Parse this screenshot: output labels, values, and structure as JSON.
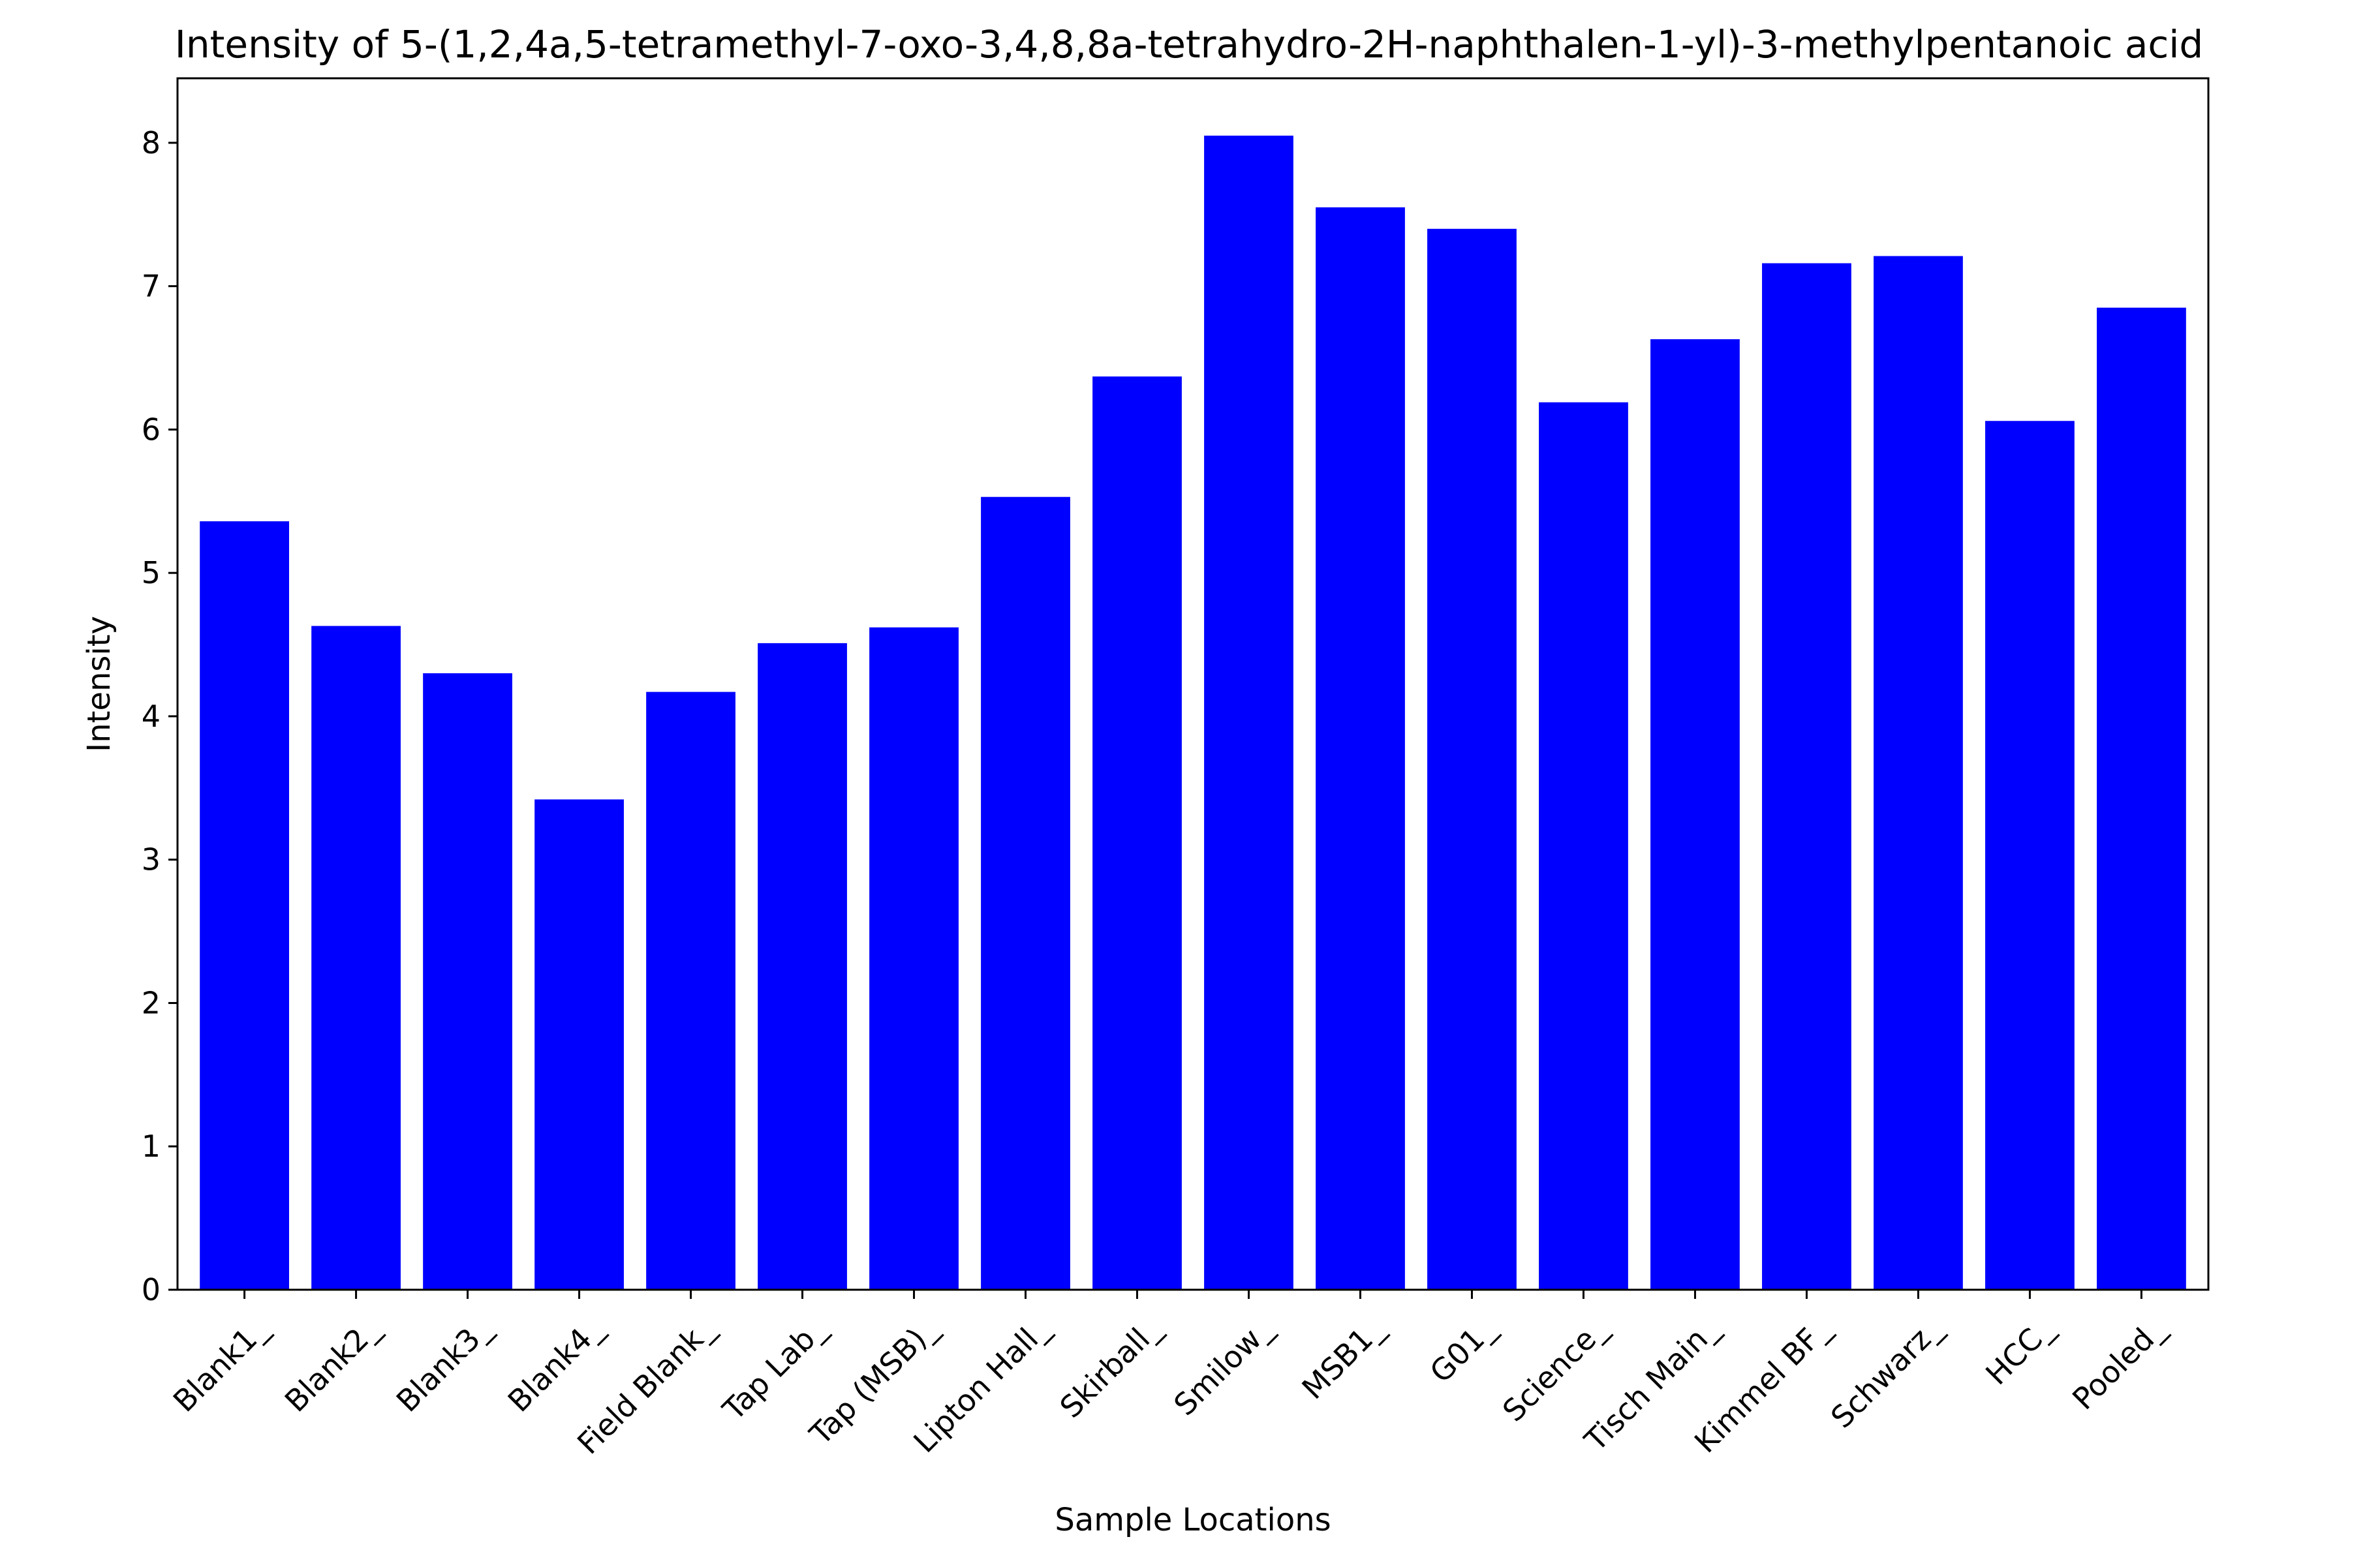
{
  "chart_data": {
    "type": "bar",
    "title": "Intensity of 5-(1,2,4a,5-tetramethyl-7-oxo-3,4,8,8a-tetrahydro-2H-naphthalen-1-yl)-3-methylpentanoic acid",
    "xlabel": "Sample Locations",
    "ylabel": "Intensity",
    "categories": [
      "Blank1_",
      "Blank2_",
      "Blank3_",
      "Blank4_",
      "Field Blank_",
      "Tap Lab_",
      "Tap (MSB)_",
      "Lipton Hall_",
      "Skirball_",
      "Smilow_",
      "MSB1_",
      "G01_",
      "Science_",
      "Tisch Main_",
      "Kimmel BF_",
      "Schwarz_",
      "HCC_",
      "Pooled_"
    ],
    "values": [
      5.36,
      4.63,
      4.3,
      3.42,
      4.17,
      4.51,
      4.62,
      5.53,
      6.37,
      8.05,
      7.55,
      7.4,
      6.19,
      6.63,
      7.16,
      7.21,
      6.06,
      6.85
    ],
    "ylim": [
      0,
      8.45
    ],
    "yticks": [
      0,
      1,
      2,
      3,
      4,
      5,
      6,
      7,
      8
    ],
    "bar_color": "#0000ff",
    "grid": false,
    "legend": "none"
  }
}
